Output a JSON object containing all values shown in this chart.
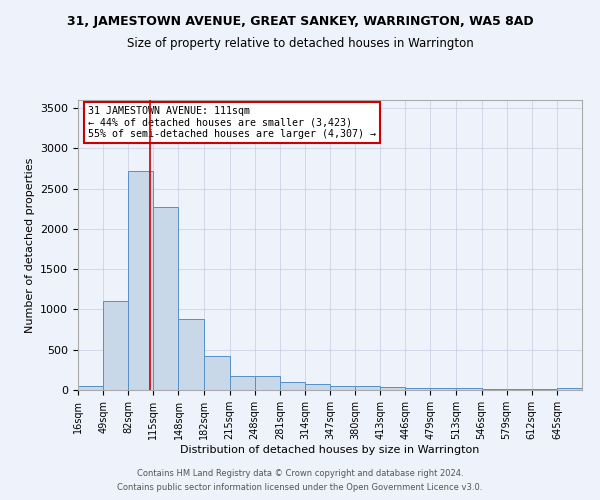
{
  "title": "31, JAMESTOWN AVENUE, GREAT SANKEY, WARRINGTON, WA5 8AD",
  "subtitle": "Size of property relative to detached houses in Warrington",
  "xlabel": "Distribution of detached houses by size in Warrington",
  "ylabel": "Number of detached properties",
  "footnote1": "Contains HM Land Registry data © Crown copyright and database right 2024.",
  "footnote2": "Contains public sector information licensed under the Open Government Licence v3.0.",
  "annotation_line1": "31 JAMESTOWN AVENUE: 111sqm",
  "annotation_line2": "← 44% of detached houses are smaller (3,423)",
  "annotation_line3": "55% of semi-detached houses are larger (4,307) →",
  "bar_edges": [
    16,
    49,
    82,
    115,
    148,
    182,
    215,
    248,
    281,
    314,
    347,
    380,
    413,
    446,
    479,
    513,
    546,
    579,
    612,
    645,
    678
  ],
  "bar_heights": [
    50,
    1100,
    2720,
    2270,
    880,
    420,
    175,
    170,
    95,
    70,
    55,
    45,
    40,
    30,
    25,
    20,
    15,
    10,
    10,
    30
  ],
  "property_size": 111,
  "bar_color": "#c8d8e8",
  "bar_edge_color": "#5590c8",
  "vline_color": "#cc0000",
  "background_color": "#eef2fa",
  "grid_color": "#c8cce0",
  "ylim": [
    0,
    3600
  ],
  "yticks": [
    0,
    500,
    1000,
    1500,
    2000,
    2500,
    3000,
    3500
  ],
  "figsize": [
    6.0,
    5.0
  ],
  "dpi": 100
}
